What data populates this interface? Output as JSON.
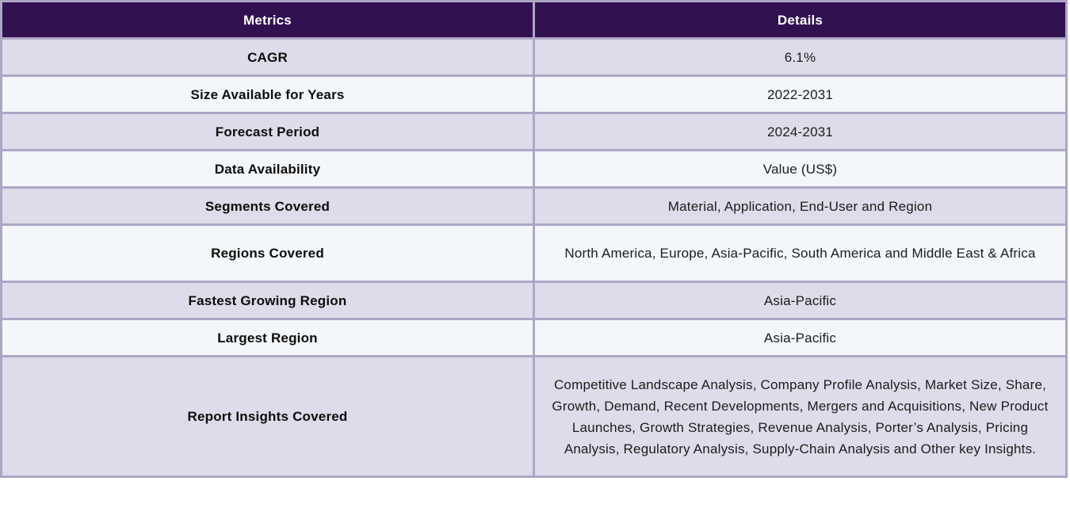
{
  "table": {
    "headers": {
      "metrics": "Metrics",
      "details": "Details"
    },
    "rows": [
      {
        "metric": "CAGR",
        "detail": "6.1%"
      },
      {
        "metric": "Size Available for Years",
        "detail": "2022-2031"
      },
      {
        "metric": "Forecast Period",
        "detail": "2024-2031"
      },
      {
        "metric": "Data Availability",
        "detail": "Value (US$)"
      },
      {
        "metric": "Segments Covered",
        "detail": "Material, Application, End-User and Region"
      },
      {
        "metric": "Regions Covered",
        "detail": "North America, Europe, Asia-Pacific, South America and Middle East & Africa"
      },
      {
        "metric": "Fastest Growing Region",
        "detail": "Asia-Pacific"
      },
      {
        "metric": "Largest Region",
        "detail": "Asia-Pacific"
      },
      {
        "metric": "Report Insights Covered",
        "detail": "Competitive Landscape Analysis, Company Profile Analysis, Market Size, Share, Growth, Demand, Recent Developments, Mergers and Acquisitions, New Product Launches, Growth Strategies, Revenue Analysis, Porter’s Analysis, Pricing Analysis, Regulatory Analysis, Supply-Chain Analysis and Other key Insights."
      }
    ]
  },
  "colors": {
    "header_bg": "#321150",
    "header_text": "#ffffff",
    "row_lavender_bg": "#dedbea",
    "row_light_bg": "#f3f7fa",
    "border": "#aea6c5"
  }
}
